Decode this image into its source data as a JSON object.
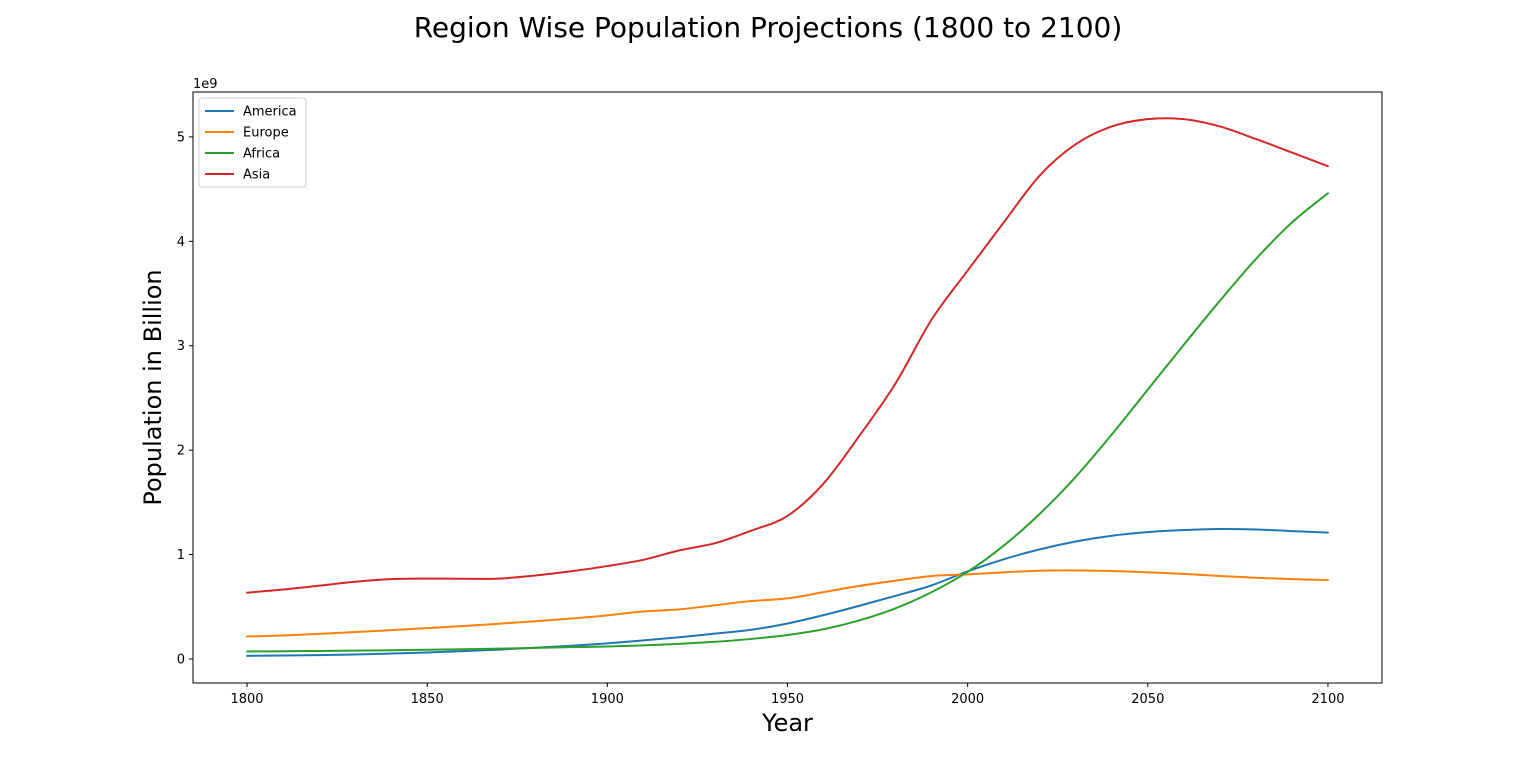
{
  "chart_data": {
    "type": "line",
    "title": "Region Wise Population Projections (1800 to 2100)",
    "xlabel": "Year",
    "ylabel": "Population in Billion",
    "offset_label": "1e9",
    "xlim": [
      1785,
      2115
    ],
    "ylim": [
      -230000000.0,
      5430000000.0
    ],
    "xticks": [
      1800,
      1850,
      1900,
      1950,
      2000,
      2050,
      2100
    ],
    "yticks": [
      0,
      1000000000,
      2000000000,
      3000000000,
      4000000000,
      5000000000
    ],
    "ytick_labels": [
      "0",
      "1",
      "2",
      "3",
      "4",
      "5"
    ],
    "grid": false,
    "legend_position": "upper-left",
    "x": [
      1800,
      1810,
      1820,
      1830,
      1840,
      1850,
      1860,
      1870,
      1880,
      1890,
      1900,
      1910,
      1920,
      1930,
      1940,
      1950,
      1960,
      1970,
      1980,
      1990,
      2000,
      2010,
      2020,
      2030,
      2040,
      2050,
      2060,
      2070,
      2080,
      2090,
      2100
    ],
    "series": [
      {
        "name": "America",
        "color": "#1f77b4",
        "values": [
          30000000,
          33000000,
          37000000,
          43000000,
          52000000,
          62000000,
          75000000,
          90000000,
          107000000,
          127000000,
          150000000,
          178000000,
          208000000,
          244000000,
          280000000,
          340000000,
          420000000,
          510000000,
          605000000,
          705000000,
          840000000,
          955000000,
          1050000000,
          1125000000,
          1180000000,
          1215000000,
          1235000000,
          1245000000,
          1240000000,
          1225000000,
          1210000000
        ]
      },
      {
        "name": "Europe",
        "color": "#ff7f0e",
        "values": [
          215000000,
          225000000,
          240000000,
          258000000,
          276000000,
          295000000,
          316000000,
          338000000,
          362000000,
          388000000,
          418000000,
          455000000,
          475000000,
          515000000,
          555000000,
          580000000,
          640000000,
          700000000,
          750000000,
          795000000,
          810000000,
          830000000,
          845000000,
          848000000,
          843000000,
          830000000,
          815000000,
          795000000,
          778000000,
          765000000,
          755000000
        ]
      },
      {
        "name": "Africa",
        "color": "#2ca02c",
        "values": [
          72000000,
          74000000,
          77000000,
          80000000,
          84000000,
          88000000,
          93000000,
          99000000,
          106000000,
          113000000,
          120000000,
          130000000,
          145000000,
          165000000,
          192000000,
          230000000,
          285000000,
          370000000,
          485000000,
          640000000,
          835000000,
          1085000000,
          1390000000,
          1745000000,
          2150000000,
          2580000000,
          3010000000,
          3430000000,
          3830000000,
          4180000000,
          4460000000
        ]
      },
      {
        "name": "Asia",
        "color": "#d62728",
        "values": [
          635000000,
          665000000,
          702000000,
          740000000,
          765000000,
          770000000,
          768000000,
          770000000,
          800000000,
          840000000,
          890000000,
          950000000,
          1040000000,
          1110000000,
          1230000000,
          1370000000,
          1680000000,
          2140000000,
          2640000000,
          3250000000,
          3720000000,
          4180000000,
          4630000000,
          4930000000,
          5100000000,
          5170000000,
          5170000000,
          5100000000,
          4980000000,
          4850000000,
          4720000000
        ]
      }
    ]
  }
}
